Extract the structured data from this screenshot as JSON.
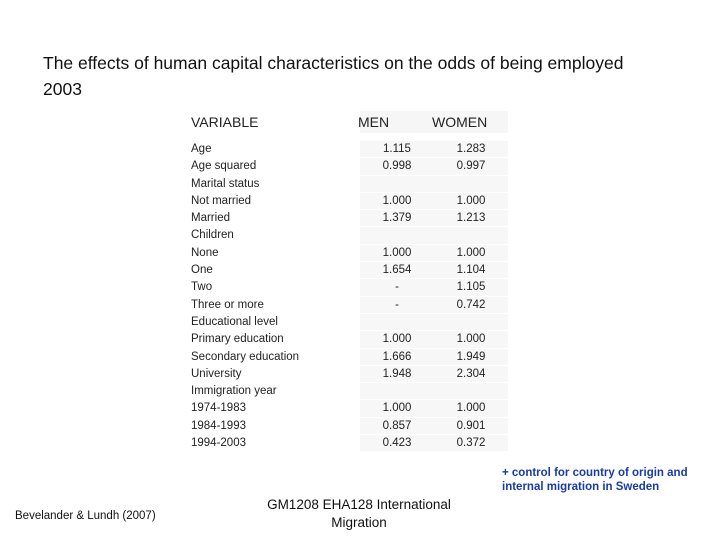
{
  "title": "The effects of human capital characteristics on the odds of being employed 2003",
  "table": {
    "headers": [
      "VARIABLE",
      "MEN",
      "WOMEN"
    ],
    "rows": [
      {
        "label": "Age",
        "men": "1.115",
        "women": "1.283"
      },
      {
        "label": "Age squared",
        "men": "0.998",
        "women": "0.997"
      },
      {
        "label": "Marital status",
        "men": "",
        "women": ""
      },
      {
        "label": "Not married",
        "men": "1.000",
        "women": "1.000"
      },
      {
        "label": "Married",
        "men": "1.379",
        "women": "1.213"
      },
      {
        "label": "Children",
        "men": "",
        "women": ""
      },
      {
        "label": "None",
        "men": "1.000",
        "women": "1.000"
      },
      {
        "label": "One",
        "men": "1.654",
        "women": "1.104"
      },
      {
        "label": "Two",
        "men": "-",
        "women": "1.105"
      },
      {
        "label": "Three or more",
        "men": "-",
        "women": "0.742"
      },
      {
        "label": "Educational level",
        "men": "",
        "women": ""
      },
      {
        "label": "Primary education",
        "men": "1.000",
        "women": "1.000"
      },
      {
        "label": "Secondary education",
        "men": "1.666",
        "women": "1.949"
      },
      {
        "label": "University",
        "men": "1.948",
        "women": "2.304"
      },
      {
        "label": "Immigration year",
        "men": "",
        "women": ""
      },
      {
        "label": "1974-1983",
        "men": "1.000",
        "women": "1.000"
      },
      {
        "label": "1984-1993",
        "men": "0.857",
        "women": "0.901"
      },
      {
        "label": "1994-2003",
        "men": "0.423",
        "women": "0.372"
      }
    ]
  },
  "note": "+ control for country of origin and internal migration in Sweden",
  "footer": {
    "left": "Bevelander & Lundh (2007)",
    "center": "GM1208 EHA128 International Migration"
  }
}
